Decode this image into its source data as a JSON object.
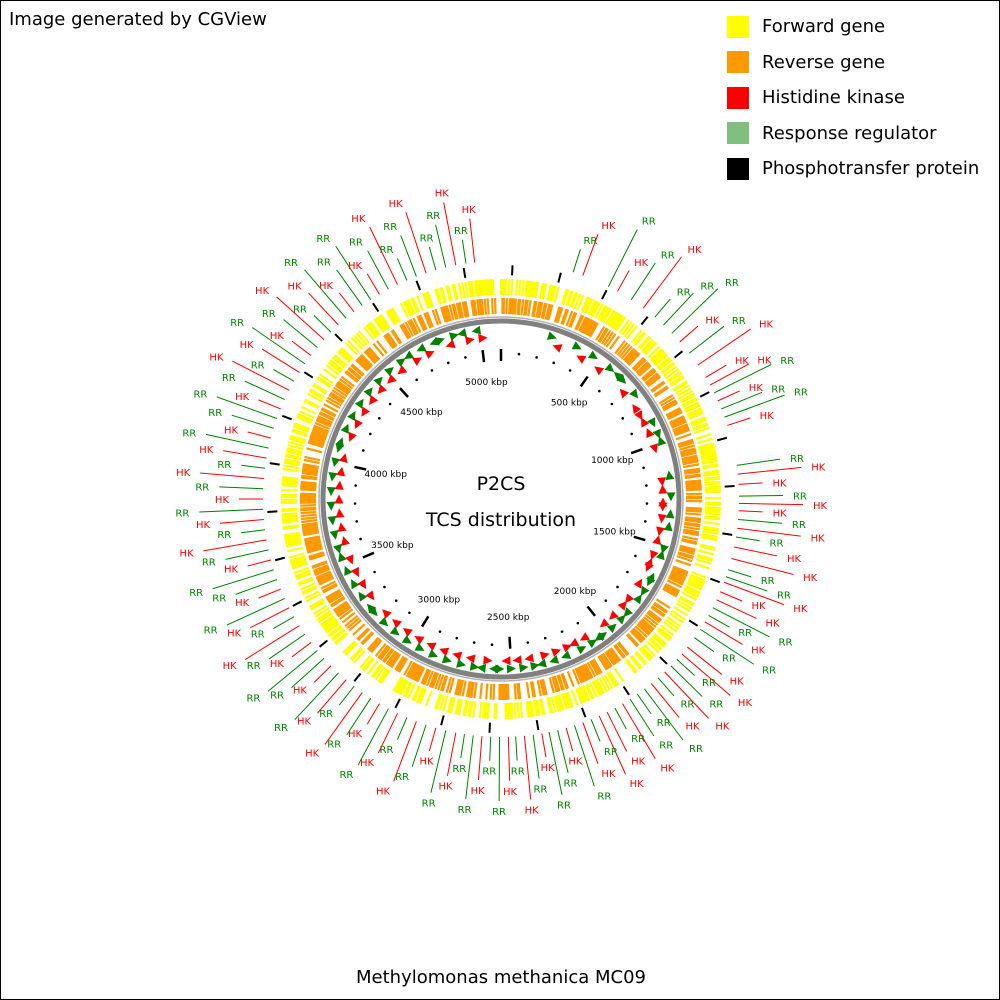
{
  "credit": "Image generated by CGView",
  "title": "P2CS",
  "subtitle": "TCS distribution",
  "organism": "Methylomonas methanica MC09",
  "colors": {
    "forward": "#ffff00",
    "reverse": "#ff9900",
    "hk": "#ff0000",
    "rr": "#008000",
    "rr_legend": "#7fbf7f",
    "hpt": "#000000",
    "backbone": "#808080"
  },
  "legend": [
    {
      "label": "Forward gene",
      "color": "#ffff00"
    },
    {
      "label": "Reverse gene",
      "color": "#ff9900"
    },
    {
      "label": "Histidine kinase",
      "color": "#ff0000"
    },
    {
      "label": "Response regulator",
      "color": "#7fbf7f"
    },
    {
      "label": "Phosphotransfer protein",
      "color": "#000000"
    }
  ],
  "genome": {
    "length_kbp": 5100,
    "tick_labels": [
      "500 kbp",
      "1000 kbp",
      "1500 kbp",
      "2000 kbp",
      "2500 kbp",
      "3000 kbp",
      "3500 kbp",
      "4000 kbp",
      "4500 kbp",
      "5000 kbp"
    ]
  },
  "tcs_features": [
    {
      "kbp": 250,
      "type": "RR"
    },
    {
      "kbp": 285,
      "type": "HK"
    },
    {
      "kbp": 380,
      "type": "RR"
    },
    {
      "kbp": 415,
      "type": "HK"
    },
    {
      "kbp": 470,
      "type": "RR"
    },
    {
      "kbp": 520,
      "type": "HK"
    },
    {
      "kbp": 570,
      "type": "RR"
    },
    {
      "kbp": 610,
      "type": "RR"
    },
    {
      "kbp": 650,
      "type": "RR"
    },
    {
      "kbp": 690,
      "type": "HK"
    },
    {
      "kbp": 740,
      "type": "RR"
    },
    {
      "kbp": 790,
      "type": "HK"
    },
    {
      "kbp": 840,
      "type": "HK"
    },
    {
      "kbp": 870,
      "type": "HK"
    },
    {
      "kbp": 900,
      "type": "RR"
    },
    {
      "kbp": 930,
      "type": "HK"
    },
    {
      "kbp": 960,
      "type": "RR"
    },
    {
      "kbp": 990,
      "type": "RR"
    },
    {
      "kbp": 1020,
      "type": "HK"
    },
    {
      "kbp": 1160,
      "type": "RR"
    },
    {
      "kbp": 1190,
      "type": "HK"
    },
    {
      "kbp": 1225,
      "type": "HK"
    },
    {
      "kbp": 1265,
      "type": "RR"
    },
    {
      "kbp": 1290,
      "type": "HK"
    },
    {
      "kbp": 1315,
      "type": "HK"
    },
    {
      "kbp": 1345,
      "type": "RR"
    },
    {
      "kbp": 1375,
      "type": "HK"
    },
    {
      "kbp": 1405,
      "type": "RR"
    },
    {
      "kbp": 1440,
      "type": "HK"
    },
    {
      "kbp": 1480,
      "type": "HK"
    },
    {
      "kbp": 1520,
      "type": "RR"
    },
    {
      "kbp": 1545,
      "type": "RR"
    },
    {
      "kbp": 1565,
      "type": "HK"
    },
    {
      "kbp": 1600,
      "type": "HK"
    },
    {
      "kbp": 1630,
      "type": "HK"
    },
    {
      "kbp": 1660,
      "type": "RR"
    },
    {
      "kbp": 1690,
      "type": "RR"
    },
    {
      "kbp": 1715,
      "type": "HK"
    },
    {
      "kbp": 1745,
      "type": "RR"
    },
    {
      "kbp": 1780,
      "type": "RR"
    },
    {
      "kbp": 1820,
      "type": "HK"
    },
    {
      "kbp": 1850,
      "type": "HK"
    },
    {
      "kbp": 1875,
      "type": "RR"
    },
    {
      "kbp": 1905,
      "type": "RR"
    },
    {
      "kbp": 1935,
      "type": "HK"
    },
    {
      "kbp": 1965,
      "type": "RR"
    },
    {
      "kbp": 1995,
      "type": "HK"
    },
    {
      "kbp": 2025,
      "type": "RR"
    },
    {
      "kbp": 2055,
      "type": "RR"
    },
    {
      "kbp": 2085,
      "type": "RR"
    },
    {
      "kbp": 2115,
      "type": "HK"
    },
    {
      "kbp": 2145,
      "type": "RR"
    },
    {
      "kbp": 2175,
      "type": "HK"
    },
    {
      "kbp": 2205,
      "type": "HK"
    },
    {
      "kbp": 2235,
      "type": "RR"
    },
    {
      "kbp": 2265,
      "type": "HK"
    },
    {
      "kbp": 2295,
      "type": "RR"
    },
    {
      "kbp": 2325,
      "type": "HK"
    },
    {
      "kbp": 2355,
      "type": "RR"
    },
    {
      "kbp": 2385,
      "type": "RR"
    },
    {
      "kbp": 2410,
      "type": "HK"
    },
    {
      "kbp": 2440,
      "type": "RR"
    },
    {
      "kbp": 2470,
      "type": "HK"
    },
    {
      "kbp": 2500,
      "type": "RR"
    },
    {
      "kbp": 2525,
      "type": "HK"
    },
    {
      "kbp": 2555,
      "type": "RR"
    },
    {
      "kbp": 2585,
      "type": "RR"
    },
    {
      "kbp": 2615,
      "type": "HK"
    },
    {
      "kbp": 2645,
      "type": "RR"
    },
    {
      "kbp": 2675,
      "type": "RR"
    },
    {
      "kbp": 2705,
      "type": "HK"
    },
    {
      "kbp": 2740,
      "type": "RR"
    },
    {
      "kbp": 2775,
      "type": "HK"
    },
    {
      "kbp": 2810,
      "type": "RR"
    },
    {
      "kbp": 2845,
      "type": "HK"
    },
    {
      "kbp": 2880,
      "type": "RR"
    },
    {
      "kbp": 2915,
      "type": "HK"
    },
    {
      "kbp": 2950,
      "type": "RR"
    },
    {
      "kbp": 2985,
      "type": "HK"
    },
    {
      "kbp": 3020,
      "type": "RR"
    },
    {
      "kbp": 3055,
      "type": "HK"
    },
    {
      "kbp": 3090,
      "type": "RR"
    },
    {
      "kbp": 3125,
      "type": "HK"
    },
    {
      "kbp": 3160,
      "type": "RR"
    },
    {
      "kbp": 3195,
      "type": "HK"
    },
    {
      "kbp": 3230,
      "type": "RR"
    },
    {
      "kbp": 3265,
      "type": "RR"
    },
    {
      "kbp": 3300,
      "type": "HK"
    },
    {
      "kbp": 3335,
      "type": "RR"
    },
    {
      "kbp": 3370,
      "type": "HK"
    },
    {
      "kbp": 3405,
      "type": "RR"
    },
    {
      "kbp": 3440,
      "type": "HK"
    },
    {
      "kbp": 3475,
      "type": "RR"
    },
    {
      "kbp": 3510,
      "type": "HK"
    },
    {
      "kbp": 3545,
      "type": "RR"
    },
    {
      "kbp": 3580,
      "type": "RR"
    },
    {
      "kbp": 3615,
      "type": "HK"
    },
    {
      "kbp": 3650,
      "type": "RR"
    },
    {
      "kbp": 3685,
      "type": "HK"
    },
    {
      "kbp": 3720,
      "type": "RR"
    },
    {
      "kbp": 3755,
      "type": "HK"
    },
    {
      "kbp": 3790,
      "type": "RR"
    },
    {
      "kbp": 3825,
      "type": "HK"
    },
    {
      "kbp": 3860,
      "type": "RR"
    },
    {
      "kbp": 3895,
      "type": "HK"
    },
    {
      "kbp": 3930,
      "type": "RR"
    },
    {
      "kbp": 3965,
      "type": "HK"
    },
    {
      "kbp": 4000,
      "type": "RR"
    },
    {
      "kbp": 4035,
      "type": "HK"
    },
    {
      "kbp": 4070,
      "type": "RR"
    },
    {
      "kbp": 4105,
      "type": "RR"
    },
    {
      "kbp": 4140,
      "type": "HK"
    },
    {
      "kbp": 4175,
      "type": "RR"
    },
    {
      "kbp": 4210,
      "type": "HK"
    },
    {
      "kbp": 4245,
      "type": "RR"
    },
    {
      "kbp": 4280,
      "type": "HK"
    },
    {
      "kbp": 4315,
      "type": "RR"
    },
    {
      "kbp": 4350,
      "type": "HK"
    },
    {
      "kbp": 4385,
      "type": "RR"
    },
    {
      "kbp": 4420,
      "type": "HK"
    },
    {
      "kbp": 4455,
      "type": "RR"
    },
    {
      "kbp": 4490,
      "type": "HK"
    },
    {
      "kbp": 4525,
      "type": "RR"
    },
    {
      "kbp": 4560,
      "type": "HK"
    },
    {
      "kbp": 4595,
      "type": "RR"
    },
    {
      "kbp": 4630,
      "type": "RR"
    },
    {
      "kbp": 4665,
      "type": "HK"
    },
    {
      "kbp": 4700,
      "type": "RR"
    },
    {
      "kbp": 4735,
      "type": "HK"
    },
    {
      "kbp": 4770,
      "type": "RR"
    },
    {
      "kbp": 4805,
      "type": "RR"
    },
    {
      "kbp": 4840,
      "type": "HK"
    },
    {
      "kbp": 4875,
      "type": "RR"
    },
    {
      "kbp": 4910,
      "type": "RR"
    },
    {
      "kbp": 4945,
      "type": "HK"
    },
    {
      "kbp": 4980,
      "type": "RR"
    },
    {
      "kbp": 5010,
      "type": "HK"
    }
  ]
}
